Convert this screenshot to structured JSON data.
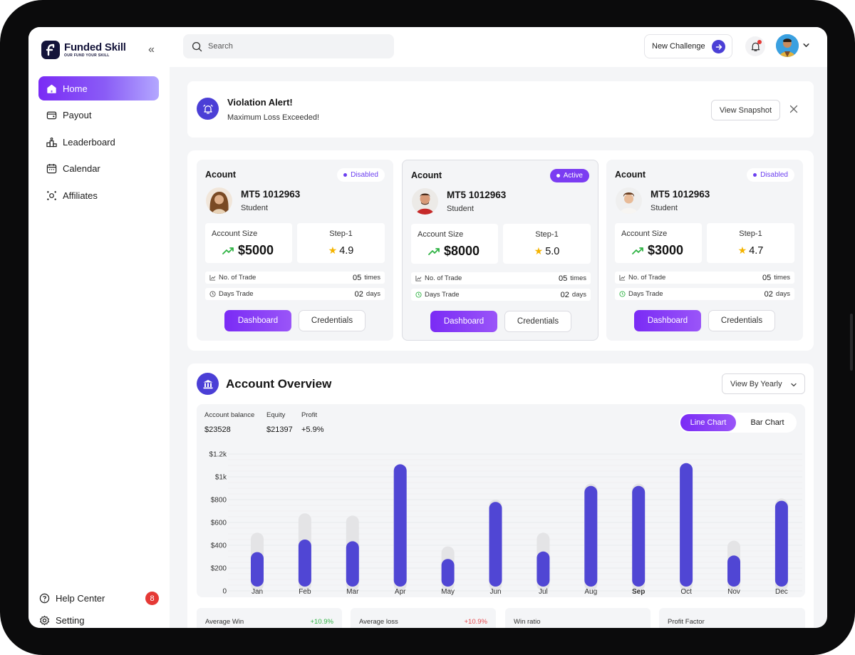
{
  "brand": {
    "name": "Funded Skill",
    "tagline": "OUR FUND YOUR SKILL"
  },
  "sidebar": {
    "items": [
      {
        "label": "Home",
        "icon": "home-icon",
        "active": true
      },
      {
        "label": "Payout",
        "icon": "wallet-icon"
      },
      {
        "label": "Leaderboard",
        "icon": "podium-icon"
      },
      {
        "label": "Calendar",
        "icon": "calendar-icon"
      },
      {
        "label": "Affiliates",
        "icon": "affiliates-icon"
      }
    ],
    "help_label": "Help Center",
    "help_badge": "8",
    "setting_label": "Setting"
  },
  "topbar": {
    "search_placeholder": "Search",
    "new_challenge_label": "New Challenge"
  },
  "alert": {
    "title": "Violation Alert!",
    "message": "Maximum Loss Exceeded!",
    "button": "View Snapshot"
  },
  "accounts": [
    {
      "title": "Acount",
      "status": "Disabled",
      "id": "MT5 1012963",
      "role": "Student",
      "size_label": "Account Size",
      "size": "$5000",
      "step_label": "Step-1",
      "rating": "4.9",
      "trades_label": "No. of Trade",
      "trades": "05",
      "trades_unit": "times",
      "days_label": "Days Trade",
      "days": "02",
      "days_unit": "days",
      "dashboard": "Dashboard",
      "credentials": "Credentials"
    },
    {
      "title": "Acount",
      "status": "Active",
      "id": "MT5 1012963",
      "role": "Student",
      "size_label": "Account Size",
      "size": "$8000",
      "step_label": "Step-1",
      "rating": "5.0",
      "trades_label": "No. of Trade",
      "trades": "05",
      "trades_unit": "times",
      "days_label": "Days Trade",
      "days": "02",
      "days_unit": "days",
      "dashboard": "Dashboard",
      "credentials": "Credentials"
    },
    {
      "title": "Acount",
      "status": "Disabled",
      "id": "MT5 1012963",
      "role": "Student",
      "size_label": "Account Size",
      "size": "$3000",
      "step_label": "Step-1",
      "rating": "4.7",
      "trades_label": "No. of Trade",
      "trades": "05",
      "trades_unit": "times",
      "days_label": "Days Trade",
      "days": "02",
      "days_unit": "days",
      "dashboard": "Dashboard",
      "credentials": "Credentials"
    }
  ],
  "overview": {
    "title": "Account Overview",
    "view_by": "View By Yearly",
    "stats": [
      {
        "label": "Account balance",
        "value": "$23528"
      },
      {
        "label": "Equity",
        "value": "$21397"
      },
      {
        "label": "Profit",
        "value": "+5.9%"
      }
    ],
    "toggle": {
      "line": "Line Chart",
      "bar": "Bar Chart"
    },
    "metrics": [
      {
        "label": "Average Win",
        "value": "+10.9%",
        "color": "#2fb344"
      },
      {
        "label": "Average loss",
        "value": "+10.9%",
        "color": "#e5484d"
      },
      {
        "label": "Win ratio",
        "value": ""
      },
      {
        "label": "Profit Factor",
        "value": ""
      }
    ]
  },
  "colors": {
    "accent": "#7a2bf5",
    "bar": "#5046d4",
    "bar_bg": "#e4e4e6"
  },
  "chart_data": {
    "type": "bar",
    "categories": [
      "Jan",
      "Feb",
      "Mar",
      "Apr",
      "May",
      "Jun",
      "Jul",
      "Aug",
      "Sep",
      "Oct",
      "Nov",
      "Dec"
    ],
    "highlight": "Sep",
    "y_ticks": [
      "0",
      "$200",
      "$400",
      "$600",
      "$800",
      "$1k",
      "$1.2k"
    ],
    "ylim": [
      0,
      1200
    ],
    "series": [
      {
        "values": [
          340,
          450,
          435,
          1110,
          280,
          780,
          345,
          920,
          920,
          1120,
          310,
          790
        ]
      },
      {
        "values": [
          510,
          680,
          660,
          1070,
          390,
          800,
          510,
          940,
          940,
          1070,
          440,
          810
        ]
      }
    ],
    "grid": true
  }
}
